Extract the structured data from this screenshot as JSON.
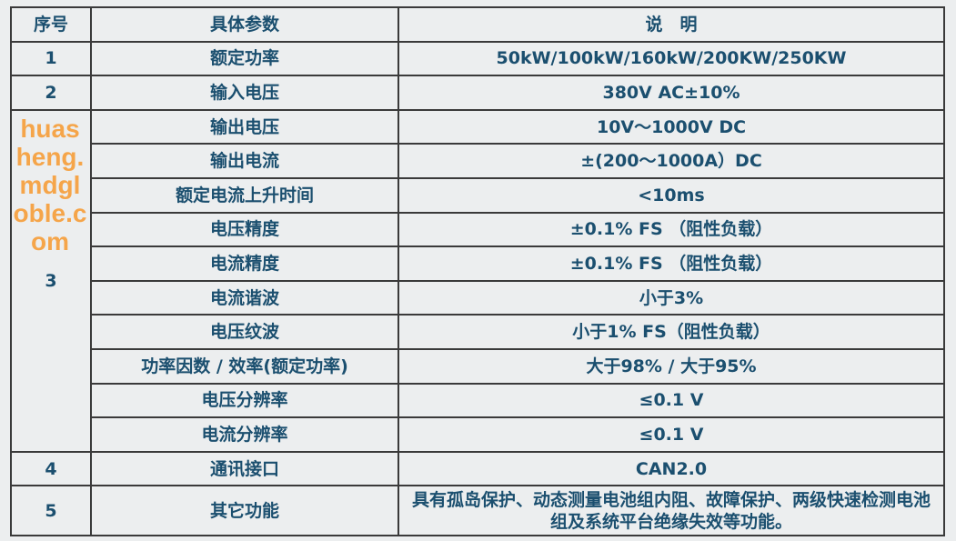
{
  "headers": {
    "index": "序号",
    "param": "具体参数",
    "desc": "说　明"
  },
  "rows": [
    {
      "index": "1",
      "param": "额定功率",
      "desc": "50kW/100kW/160kW/200KW/250KW"
    },
    {
      "index": "2",
      "param": "输入电压",
      "desc": "380V AC±10%"
    },
    {
      "index": "3",
      "param": "输出电压",
      "desc": "10V～1000V DC"
    },
    {
      "param": "输出电流",
      "desc": "±(200～1000A）DC"
    },
    {
      "param": "额定电流上升时间",
      "desc": "<10ms"
    },
    {
      "param": "电压精度",
      "desc": "±0.1% FS （阻性负载）"
    },
    {
      "param": "电流精度",
      "desc": "±0.1% FS （阻性负载）"
    },
    {
      "param": "电流谐波",
      "desc": "小于3%"
    },
    {
      "param": "电压纹波",
      "desc": "小于1% FS（阻性负载）"
    },
    {
      "param": "功率因数 / 效率(额定功率)",
      "desc": "大于98% / 大于95%"
    },
    {
      "param": "电压分辨率",
      "desc": "≤0.1 V"
    },
    {
      "param": "电流分辨率",
      "desc": "≤0.1 V"
    },
    {
      "index": "4",
      "param": "通讯接口",
      "desc": "CAN2.0"
    },
    {
      "index": "5",
      "param": "其它功能",
      "desc": "具有孤岛保护、动态测量电池组内阻、故障保护、两级快速检测电池组及系统平台绝缘失效等功能。"
    }
  ],
  "watermark": "huasheng.mdgloble.com",
  "colors": {
    "text": "#1b4f6f",
    "watermark": "#f5a54a",
    "background": "#eceeef"
  }
}
